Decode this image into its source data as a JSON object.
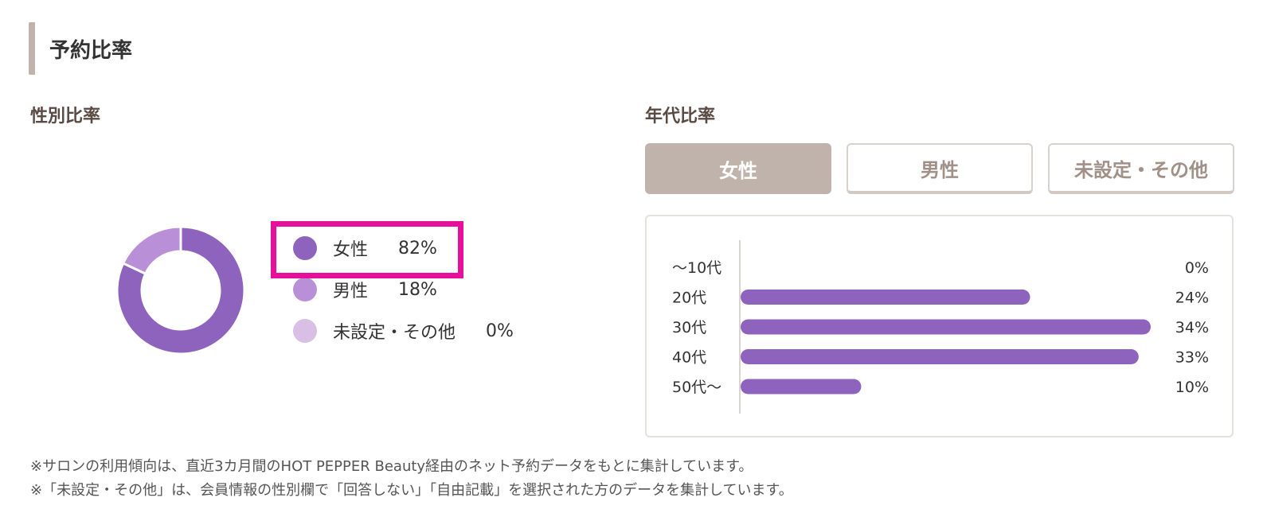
{
  "section": {
    "title": "予約比率"
  },
  "gender": {
    "title": "性別比率",
    "highlighted_index": 0
  },
  "age": {
    "title": "年代比率",
    "tabs": [
      {
        "label": "女性",
        "active": true
      },
      {
        "label": "男性",
        "active": false
      },
      {
        "label": "未設定・その他",
        "active": false
      }
    ]
  },
  "notes": [
    "※サロンの利用傾向は、直近3カ月間のHOT PEPPER Beauty経由のネット予約データをもとに集計しています。",
    "※「未設定・その他」は、会員情報の性別欄で「回答しない」「自由記載」を選択された方のデータを集計しています。"
  ],
  "chart_data": [
    {
      "type": "pie",
      "variant": "donut",
      "categories": [
        "女性",
        "男性",
        "未設定・その他"
      ],
      "value_labels": [
        "82%",
        "18%",
        "0%"
      ],
      "values": [
        82,
        18,
        0
      ],
      "colors": [
        "#8e63bd",
        "#b990d8",
        "#d9bfe6"
      ],
      "legend": "right"
    },
    {
      "type": "bar",
      "orientation": "horizontal",
      "categories": [
        "〜10代",
        "20代",
        "30代",
        "40代",
        "50代〜"
      ],
      "values": [
        0,
        24,
        34,
        33,
        10
      ],
      "value_labels": [
        "0%",
        "24%",
        "34%",
        "33%",
        "10%"
      ],
      "xlim": [
        0,
        34
      ],
      "bar_color": "#8e63bd"
    }
  ]
}
